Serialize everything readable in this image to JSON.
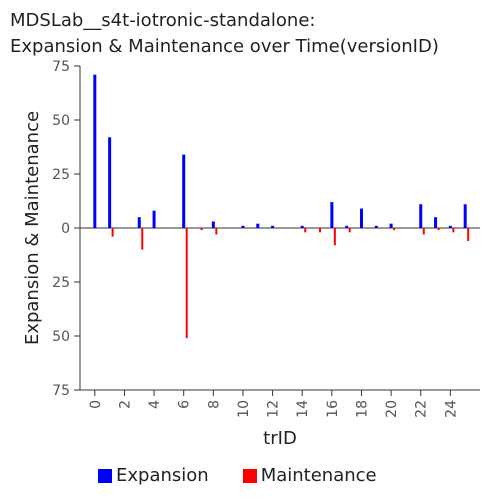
{
  "chart_data": {
    "type": "bar",
    "title_line1": "MDSLab__s4t-iotronic-standalone:",
    "title_line2": "Expansion & Maintenance over Time(versionID)",
    "xlabel": "trID",
    "ylabel": "Expansion & Maintenance",
    "ylim": [
      -75,
      75
    ],
    "xlim": [
      -1,
      26
    ],
    "y_tick_values": [
      75,
      50,
      25,
      0,
      -25,
      -50,
      -75
    ],
    "y_tick_labels": [
      "75",
      "50",
      "25",
      "0",
      "25",
      "50",
      "75"
    ],
    "x_tick_values": [
      0,
      2,
      4,
      6,
      8,
      10,
      12,
      14,
      16,
      18,
      20,
      22,
      24
    ],
    "x_tick_labels": [
      "0",
      "2",
      "4",
      "6",
      "8",
      "10",
      "12",
      "14",
      "16",
      "18",
      "20",
      "22",
      "24"
    ],
    "x": [
      0,
      1,
      2,
      3,
      4,
      5,
      6,
      7,
      8,
      9,
      10,
      11,
      12,
      13,
      14,
      15,
      16,
      17,
      18,
      19,
      20,
      21,
      22,
      23,
      24,
      25
    ],
    "series": [
      {
        "name": "Expansion",
        "color": "#0000ff",
        "values": [
          71,
          42,
          0,
          5,
          8,
          0,
          34,
          0,
          3,
          0,
          1,
          2,
          1,
          0,
          1,
          0,
          12,
          1,
          9,
          1,
          2,
          0,
          11,
          5,
          1,
          11
        ]
      },
      {
        "name": "Maintenance",
        "color": "#ff0000",
        "values": [
          0,
          -4,
          0,
          -10,
          0,
          0,
          -51,
          -1,
          -3,
          0,
          0,
          0,
          0,
          0,
          -2,
          -2,
          -8,
          -2,
          0,
          0,
          -1,
          0,
          -3,
          -1,
          -2,
          -6
        ]
      }
    ],
    "legend_position": "bottom",
    "grid": false
  }
}
